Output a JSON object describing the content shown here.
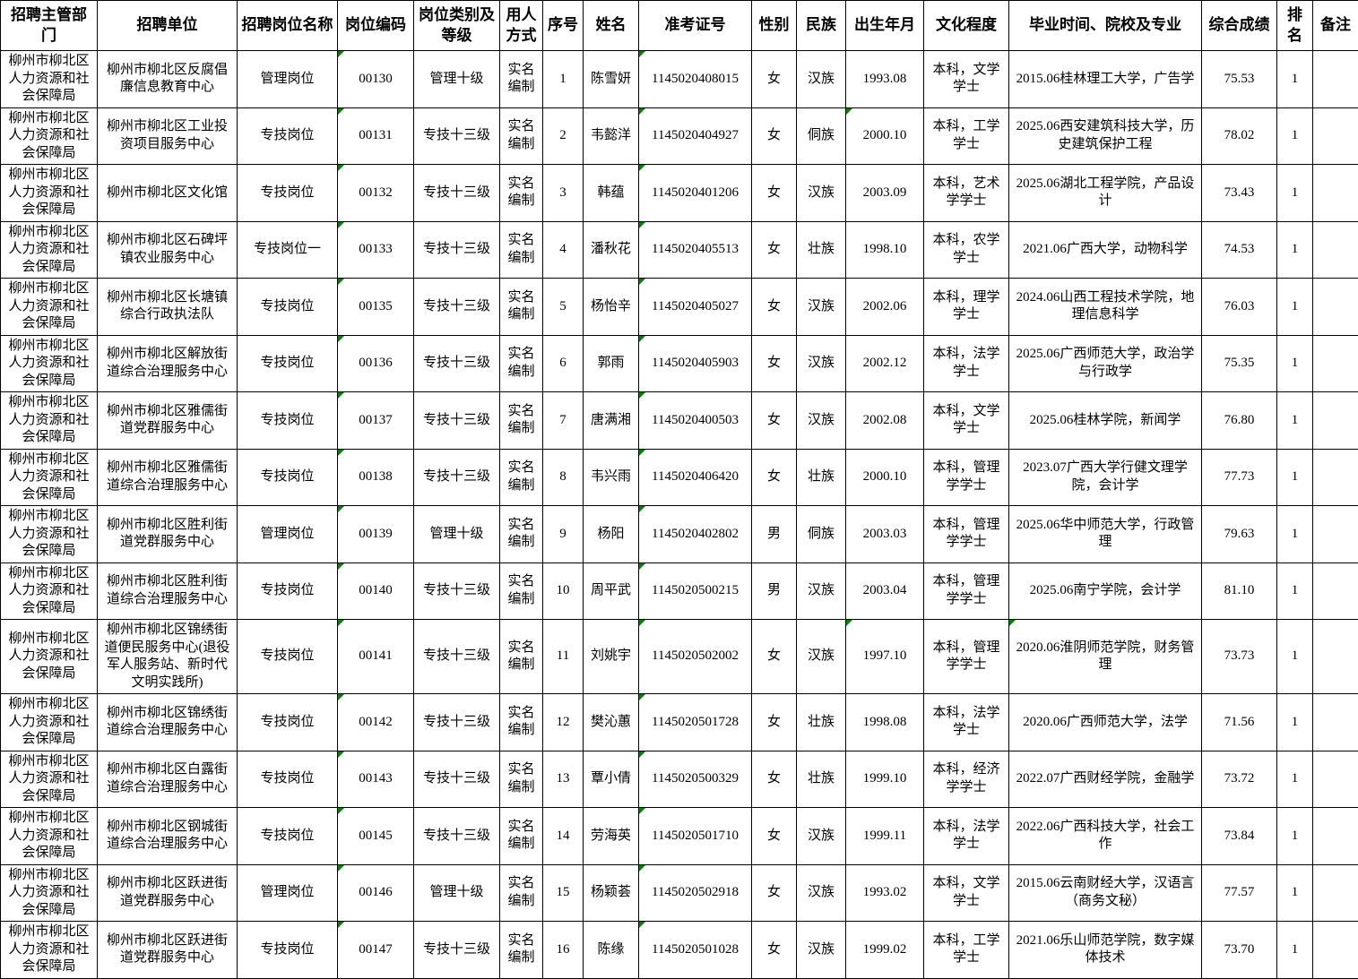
{
  "table": {
    "flag_color": "#008000",
    "columns": [
      {
        "key": "dept",
        "label": "招聘主管部门"
      },
      {
        "key": "unit",
        "label": "招聘单位"
      },
      {
        "key": "post_name",
        "label": "招聘岗位名称"
      },
      {
        "key": "post_code",
        "label": "岗位编码"
      },
      {
        "key": "post_level",
        "label": "岗位类别及等级"
      },
      {
        "key": "staffing",
        "label": "用人方式"
      },
      {
        "key": "no",
        "label": "序号"
      },
      {
        "key": "name",
        "label": "姓名"
      },
      {
        "key": "exam_id",
        "label": "准考证号"
      },
      {
        "key": "gender",
        "label": "性别"
      },
      {
        "key": "ethnicity",
        "label": "民族"
      },
      {
        "key": "birth",
        "label": "出生年月"
      },
      {
        "key": "education",
        "label": "文化程度"
      },
      {
        "key": "graduation",
        "label": "毕业时间、院校及专业"
      },
      {
        "key": "score",
        "label": "综合成绩"
      },
      {
        "key": "rank",
        "label": "排名"
      },
      {
        "key": "remark",
        "label": "备注"
      }
    ],
    "rows": [
      {
        "dept": "柳州市柳北区人力资源和社会保障局",
        "unit": "柳州市柳北区反腐倡廉信息教育中心",
        "post_name": "管理岗位",
        "post_code": "00130",
        "post_level": "管理十级",
        "staffing": "实名编制",
        "no": "1",
        "name": "陈雪妍",
        "exam_id": "1145020408015",
        "gender": "女",
        "ethnicity": "汉族",
        "birth": "1993.08",
        "education": "本科，文学学士",
        "graduation": "2015.06桂林理工大学，广告学",
        "score": "75.53",
        "rank": "1",
        "remark": "",
        "flags": [
          "post_code",
          "exam_id"
        ]
      },
      {
        "dept": "柳州市柳北区人力资源和社会保障局",
        "unit": "柳州市柳北区工业投资项目服务中心",
        "post_name": "专技岗位",
        "post_code": "00131",
        "post_level": "专技十三级",
        "staffing": "实名编制",
        "no": "2",
        "name": "韦懿洋",
        "exam_id": "1145020404927",
        "gender": "女",
        "ethnicity": "侗族",
        "birth": "2000.10",
        "education": "本科，工学学士",
        "graduation": "2025.06西安建筑科技大学，历史建筑保护工程",
        "score": "78.02",
        "rank": "1",
        "remark": "",
        "flags": [
          "post_code",
          "exam_id",
          "birth"
        ]
      },
      {
        "dept": "柳州市柳北区人力资源和社会保障局",
        "unit": "柳州市柳北区文化馆",
        "post_name": "专技岗位",
        "post_code": "00132",
        "post_level": "专技十三级",
        "staffing": "实名编制",
        "no": "3",
        "name": "韩蕴",
        "exam_id": "1145020401206",
        "gender": "女",
        "ethnicity": "汉族",
        "birth": "2003.09",
        "education": "本科，艺术学学士",
        "graduation": "2025.06湖北工程学院，产品设计",
        "score": "73.43",
        "rank": "1",
        "remark": "",
        "flags": [
          "post_code",
          "exam_id"
        ]
      },
      {
        "dept": "柳州市柳北区人力资源和社会保障局",
        "unit": "柳州市柳北区石碑坪镇农业服务中心",
        "post_name": "专技岗位一",
        "post_code": "00133",
        "post_level": "专技十三级",
        "staffing": "实名编制",
        "no": "4",
        "name": "潘秋花",
        "exam_id": "1145020405513",
        "gender": "女",
        "ethnicity": "壮族",
        "birth": "1998.10",
        "education": "本科，农学学士",
        "graduation": "2021.06广西大学，动物科学",
        "score": "74.53",
        "rank": "1",
        "remark": "",
        "flags": [
          "post_code",
          "exam_id"
        ]
      },
      {
        "dept": "柳州市柳北区人力资源和社会保障局",
        "unit": "柳州市柳北区长塘镇综合行政执法队",
        "post_name": "专技岗位",
        "post_code": "00135",
        "post_level": "专技十三级",
        "staffing": "实名编制",
        "no": "5",
        "name": "杨怡辛",
        "exam_id": "1145020405027",
        "gender": "女",
        "ethnicity": "汉族",
        "birth": "2002.06",
        "education": "本科，理学学士",
        "graduation": "2024.06山西工程技术学院，地理信息科学",
        "score": "76.03",
        "rank": "1",
        "remark": "",
        "flags": [
          "post_code",
          "exam_id"
        ]
      },
      {
        "dept": "柳州市柳北区人力资源和社会保障局",
        "unit": "柳州市柳北区解放街道综合治理服务中心",
        "post_name": "专技岗位",
        "post_code": "00136",
        "post_level": "专技十三级",
        "staffing": "实名编制",
        "no": "6",
        "name": "郭雨",
        "exam_id": "1145020405903",
        "gender": "女",
        "ethnicity": "汉族",
        "birth": "2002.12",
        "education": "本科，法学学士",
        "graduation": "2025.06广西师范大学，政治学与行政学",
        "score": "75.35",
        "rank": "1",
        "remark": "",
        "flags": [
          "post_code",
          "exam_id"
        ]
      },
      {
        "dept": "柳州市柳北区人力资源和社会保障局",
        "unit": "柳州市柳北区雅儒街道党群服务中心",
        "post_name": "专技岗位",
        "post_code": "00137",
        "post_level": "专技十三级",
        "staffing": "实名编制",
        "no": "7",
        "name": "唐满湘",
        "exam_id": "1145020400503",
        "gender": "女",
        "ethnicity": "汉族",
        "birth": "2002.08",
        "education": "本科，文学学士",
        "graduation": "2025.06桂林学院，新闻学",
        "score": "76.80",
        "rank": "1",
        "remark": "",
        "flags": [
          "post_code",
          "exam_id"
        ]
      },
      {
        "dept": "柳州市柳北区人力资源和社会保障局",
        "unit": "柳州市柳北区雅儒街道综合治理服务中心",
        "post_name": "专技岗位",
        "post_code": "00138",
        "post_level": "专技十三级",
        "staffing": "实名编制",
        "no": "8",
        "name": "韦兴雨",
        "exam_id": "1145020406420",
        "gender": "女",
        "ethnicity": "壮族",
        "birth": "2000.10",
        "education": "本科，管理学学士",
        "graduation": "2023.07广西大学行健文理学院，会计学",
        "score": "77.73",
        "rank": "1",
        "remark": "",
        "flags": [
          "post_code",
          "exam_id"
        ]
      },
      {
        "dept": "柳州市柳北区人力资源和社会保障局",
        "unit": "柳州市柳北区胜利街道党群服务中心",
        "post_name": "管理岗位",
        "post_code": "00139",
        "post_level": "管理十级",
        "staffing": "实名编制",
        "no": "9",
        "name": "杨阳",
        "exam_id": "1145020402802",
        "gender": "男",
        "ethnicity": "侗族",
        "birth": "2003.03",
        "education": "本科，管理学学士",
        "graduation": "2025.06华中师范大学，行政管理",
        "score": "79.63",
        "rank": "1",
        "remark": "",
        "flags": [
          "post_code",
          "exam_id"
        ]
      },
      {
        "dept": "柳州市柳北区人力资源和社会保障局",
        "unit": "柳州市柳北区胜利街道综合治理服务中心",
        "post_name": "专技岗位",
        "post_code": "00140",
        "post_level": "专技十三级",
        "staffing": "实名编制",
        "no": "10",
        "name": "周平武",
        "exam_id": "1145020500215",
        "gender": "男",
        "ethnicity": "汉族",
        "birth": "2003.04",
        "education": "本科，管理学学士",
        "graduation": "2025.06南宁学院，会计学",
        "score": "81.10",
        "rank": "1",
        "remark": "",
        "flags": [
          "post_code",
          "exam_id"
        ]
      },
      {
        "dept": "柳州市柳北区人力资源和社会保障局",
        "unit": "柳州市柳北区锦绣街道便民服务中心(退役军人服务站、新时代文明实践所)",
        "post_name": "专技岗位",
        "post_code": "00141",
        "post_level": "专技十三级",
        "staffing": "实名编制",
        "no": "11",
        "name": "刘姚宇",
        "exam_id": "1145020502002",
        "gender": "女",
        "ethnicity": "汉族",
        "birth": "1997.10",
        "education": "本科，管理学学士",
        "graduation": "2020.06淮阴师范学院，财务管理",
        "score": "73.73",
        "rank": "1",
        "remark": "",
        "flags": [
          "post_code",
          "exam_id",
          "birth",
          "graduation"
        ]
      },
      {
        "dept": "柳州市柳北区人力资源和社会保障局",
        "unit": "柳州市柳北区锦绣街道综合治理服务中心",
        "post_name": "专技岗位",
        "post_code": "00142",
        "post_level": "专技十三级",
        "staffing": "实名编制",
        "no": "12",
        "name": "樊沁蕙",
        "exam_id": "1145020501728",
        "gender": "女",
        "ethnicity": "壮族",
        "birth": "1998.08",
        "education": "本科，法学学士",
        "graduation": "2020.06广西师范大学，法学",
        "score": "71.56",
        "rank": "1",
        "remark": "",
        "flags": [
          "post_code",
          "exam_id"
        ]
      },
      {
        "dept": "柳州市柳北区人力资源和社会保障局",
        "unit": "柳州市柳北区白露街道综合治理服务中心",
        "post_name": "专技岗位",
        "post_code": "00143",
        "post_level": "专技十三级",
        "staffing": "实名编制",
        "no": "13",
        "name": "覃小倩",
        "exam_id": "1145020500329",
        "gender": "女",
        "ethnicity": "壮族",
        "birth": "1999.10",
        "education": "本科，经济学学士",
        "graduation": "2022.07广西财经学院，金融学",
        "score": "73.72",
        "rank": "1",
        "remark": "",
        "flags": [
          "post_code",
          "exam_id"
        ]
      },
      {
        "dept": "柳州市柳北区人力资源和社会保障局",
        "unit": "柳州市柳北区钢城街道综合治理服务中心",
        "post_name": "专技岗位",
        "post_code": "00145",
        "post_level": "专技十三级",
        "staffing": "实名编制",
        "no": "14",
        "name": "劳海英",
        "exam_id": "1145020501710",
        "gender": "女",
        "ethnicity": "汉族",
        "birth": "1999.11",
        "education": "本科，法学学士",
        "graduation": "2022.06广西科技大学，社会工作",
        "score": "73.84",
        "rank": "1",
        "remark": "",
        "flags": [
          "post_code",
          "exam_id"
        ]
      },
      {
        "dept": "柳州市柳北区人力资源和社会保障局",
        "unit": "柳州市柳北区跃进街道党群服务中心",
        "post_name": "管理岗位",
        "post_code": "00146",
        "post_level": "管理十级",
        "staffing": "实名编制",
        "no": "15",
        "name": "杨颖荟",
        "exam_id": "1145020502918",
        "gender": "女",
        "ethnicity": "汉族",
        "birth": "1993.02",
        "education": "本科，文学学士",
        "graduation": "2015.06云南财经大学，汉语言（商务文秘）",
        "score": "77.57",
        "rank": "1",
        "remark": "",
        "flags": [
          "post_code",
          "exam_id"
        ]
      },
      {
        "dept": "柳州市柳北区人力资源和社会保障局",
        "unit": "柳州市柳北区跃进街道党群服务中心",
        "post_name": "专技岗位",
        "post_code": "00147",
        "post_level": "专技十三级",
        "staffing": "实名编制",
        "no": "16",
        "name": "陈缘",
        "exam_id": "1145020501028",
        "gender": "女",
        "ethnicity": "汉族",
        "birth": "1999.02",
        "education": "本科，工学学士",
        "graduation": "2021.06乐山师范学院，数字媒体技术",
        "score": "73.70",
        "rank": "1",
        "remark": "",
        "flags": [
          "post_code",
          "exam_id"
        ]
      }
    ]
  }
}
